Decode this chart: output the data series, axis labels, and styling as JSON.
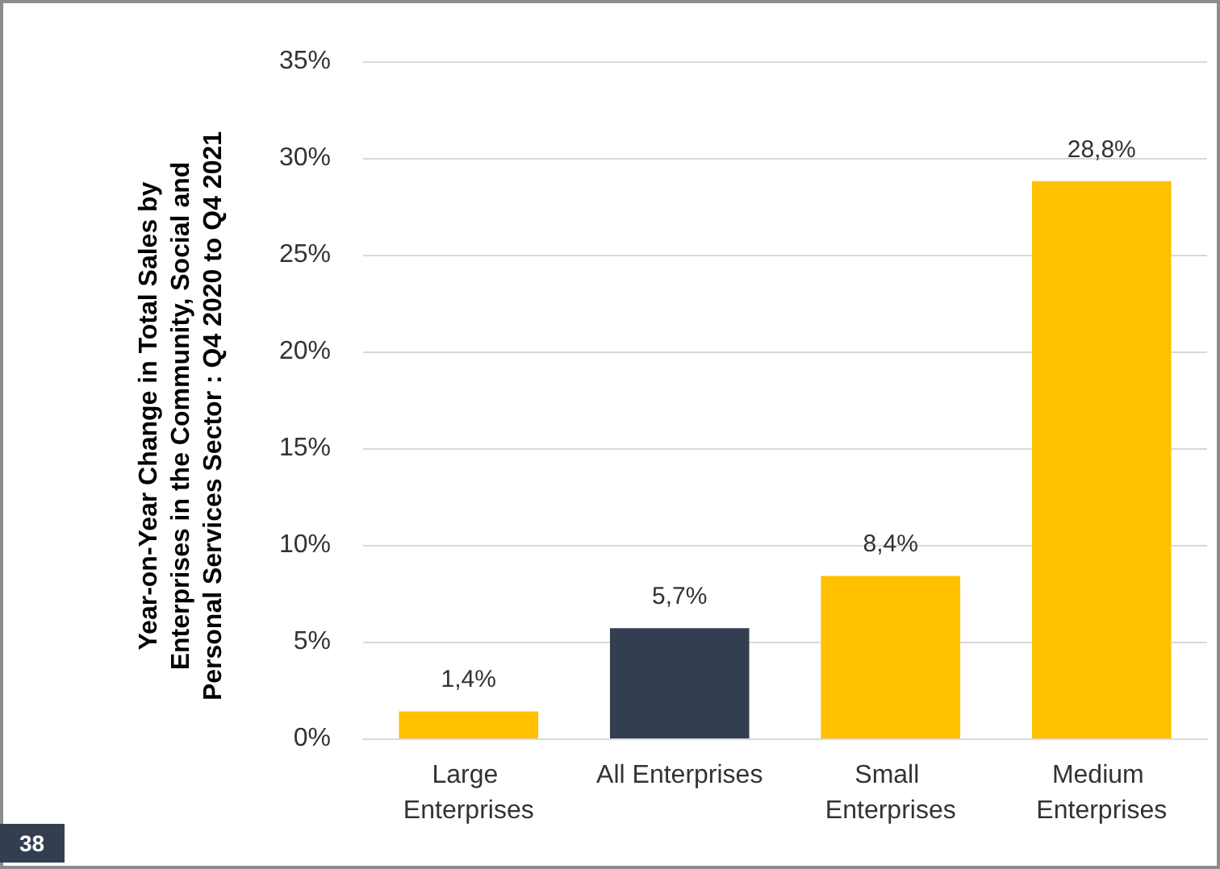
{
  "chart_data": {
    "type": "bar",
    "ylabel": "Year-on-Year Change in Total Sales by Enterprises in the Community, Social and Personal Services Sector : Q4 2020 to Q4 2021",
    "categories": [
      "Large Enterprises",
      "All Enterprises",
      "Small Enterprises",
      "Medium Enterprises"
    ],
    "values": [
      1.4,
      5.7,
      8.4,
      28.8
    ],
    "colors": [
      "#ffc000",
      "#333f50",
      "#ffc000",
      "#ffc000"
    ],
    "value_labels": [
      "1,4%",
      "5,7%",
      "8,4%",
      "28,8%"
    ],
    "ylim": [
      0,
      35
    ],
    "yticks": [
      {
        "value": 0,
        "label": "0%"
      },
      {
        "value": 5,
        "label": "5%"
      },
      {
        "value": 10,
        "label": "10%"
      },
      {
        "value": 15,
        "label": "15%"
      },
      {
        "value": 20,
        "label": "20%"
      },
      {
        "value": 25,
        "label": "25%"
      },
      {
        "value": 30,
        "label": "30%"
      },
      {
        "value": 35,
        "label": "35%"
      }
    ],
    "grid": "y",
    "annotations": [
      "38"
    ]
  }
}
